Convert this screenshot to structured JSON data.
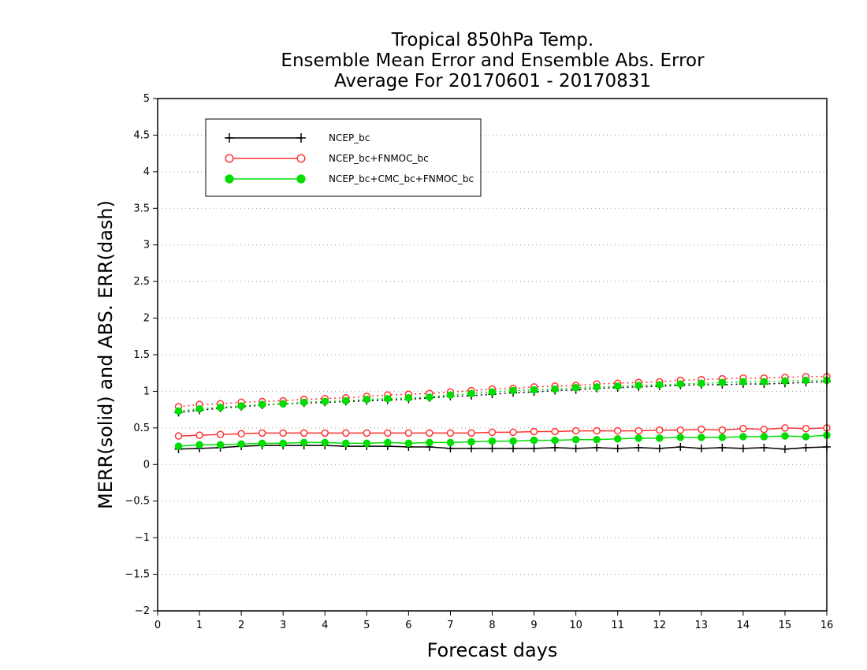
{
  "chart_data": {
    "type": "line",
    "title_lines": [
      "Tropical 850hPa Temp.",
      "Ensemble Mean Error and Ensemble Abs. Error",
      "Average For 20170601 - 20170831"
    ],
    "xlabel": "Forecast days",
    "ylabel": "MERR(solid) and ABS. ERR(dash)",
    "xlim": [
      0,
      16
    ],
    "ylim": [
      -2,
      5
    ],
    "x_ticks": [
      "0",
      "1",
      "2",
      "3",
      "4",
      "5",
      "6",
      "7",
      "8",
      "9",
      "10",
      "11",
      "12",
      "13",
      "14",
      "15",
      "16"
    ],
    "y_ticks": [
      "−2",
      "−1.5",
      "−1",
      "−0.5",
      "0",
      "0.5",
      "1",
      "1.5",
      "2",
      "2.5",
      "3",
      "3.5",
      "4",
      "4.5",
      "5"
    ],
    "y_tick_values": [
      -2,
      -1.5,
      -1,
      -0.5,
      0,
      0.5,
      1,
      1.5,
      2,
      2.5,
      3,
      3.5,
      4,
      4.5,
      5
    ],
    "grid": true,
    "legend_position": "top-left",
    "x": [
      0.5,
      1,
      1.5,
      2,
      2.5,
      3,
      3.5,
      4,
      4.5,
      5,
      5.5,
      6,
      6.5,
      7,
      7.5,
      8,
      8.5,
      9,
      9.5,
      10,
      10.5,
      11,
      11.5,
      12,
      12.5,
      13,
      13.5,
      14,
      14.5,
      15,
      15.5,
      16
    ],
    "series": [
      {
        "name": "NCEP_bc",
        "color": "#000000",
        "marker": "plus",
        "mean_values": [
          0.21,
          0.22,
          0.23,
          0.25,
          0.26,
          0.26,
          0.26,
          0.26,
          0.25,
          0.25,
          0.25,
          0.24,
          0.24,
          0.22,
          0.22,
          0.22,
          0.22,
          0.22,
          0.23,
          0.22,
          0.23,
          0.22,
          0.23,
          0.22,
          0.24,
          0.22,
          0.23,
          0.22,
          0.23,
          0.21,
          0.23,
          0.24
        ],
        "abs_values": [
          0.71,
          0.74,
          0.77,
          0.79,
          0.81,
          0.83,
          0.84,
          0.85,
          0.86,
          0.87,
          0.88,
          0.89,
          0.91,
          0.93,
          0.94,
          0.96,
          0.98,
          0.99,
          1.01,
          1.02,
          1.04,
          1.05,
          1.06,
          1.07,
          1.08,
          1.09,
          1.09,
          1.1,
          1.1,
          1.11,
          1.12,
          1.13
        ]
      },
      {
        "name": "NCEP_bc+FNMOC_bc",
        "color": "#ff3333",
        "marker": "open-circle",
        "mean_values": [
          0.39,
          0.4,
          0.41,
          0.42,
          0.43,
          0.43,
          0.43,
          0.43,
          0.43,
          0.43,
          0.43,
          0.43,
          0.43,
          0.43,
          0.43,
          0.44,
          0.44,
          0.45,
          0.45,
          0.46,
          0.46,
          0.46,
          0.46,
          0.47,
          0.47,
          0.48,
          0.47,
          0.49,
          0.48,
          0.5,
          0.49,
          0.5
        ],
        "abs_values": [
          0.79,
          0.82,
          0.83,
          0.85,
          0.86,
          0.87,
          0.89,
          0.9,
          0.91,
          0.93,
          0.95,
          0.96,
          0.97,
          0.99,
          1.01,
          1.03,
          1.04,
          1.06,
          1.07,
          1.08,
          1.1,
          1.11,
          1.12,
          1.13,
          1.15,
          1.16,
          1.17,
          1.18,
          1.18,
          1.19,
          1.2,
          1.2
        ]
      },
      {
        "name": "NCEP_bc+CMC_bc+FNMOC_bc",
        "color": "#00dd00",
        "marker": "filled-circle",
        "mean_values": [
          0.25,
          0.27,
          0.27,
          0.28,
          0.29,
          0.29,
          0.3,
          0.3,
          0.29,
          0.29,
          0.3,
          0.29,
          0.3,
          0.3,
          0.31,
          0.32,
          0.32,
          0.33,
          0.33,
          0.34,
          0.34,
          0.35,
          0.36,
          0.36,
          0.37,
          0.37,
          0.37,
          0.38,
          0.38,
          0.39,
          0.38,
          0.4
        ],
        "abs_values": [
          0.73,
          0.76,
          0.78,
          0.8,
          0.82,
          0.83,
          0.85,
          0.86,
          0.87,
          0.89,
          0.9,
          0.91,
          0.92,
          0.95,
          0.97,
          0.99,
          1.01,
          1.02,
          1.03,
          1.05,
          1.06,
          1.07,
          1.08,
          1.09,
          1.1,
          1.11,
          1.12,
          1.13,
          1.13,
          1.14,
          1.15,
          1.15
        ]
      }
    ]
  }
}
